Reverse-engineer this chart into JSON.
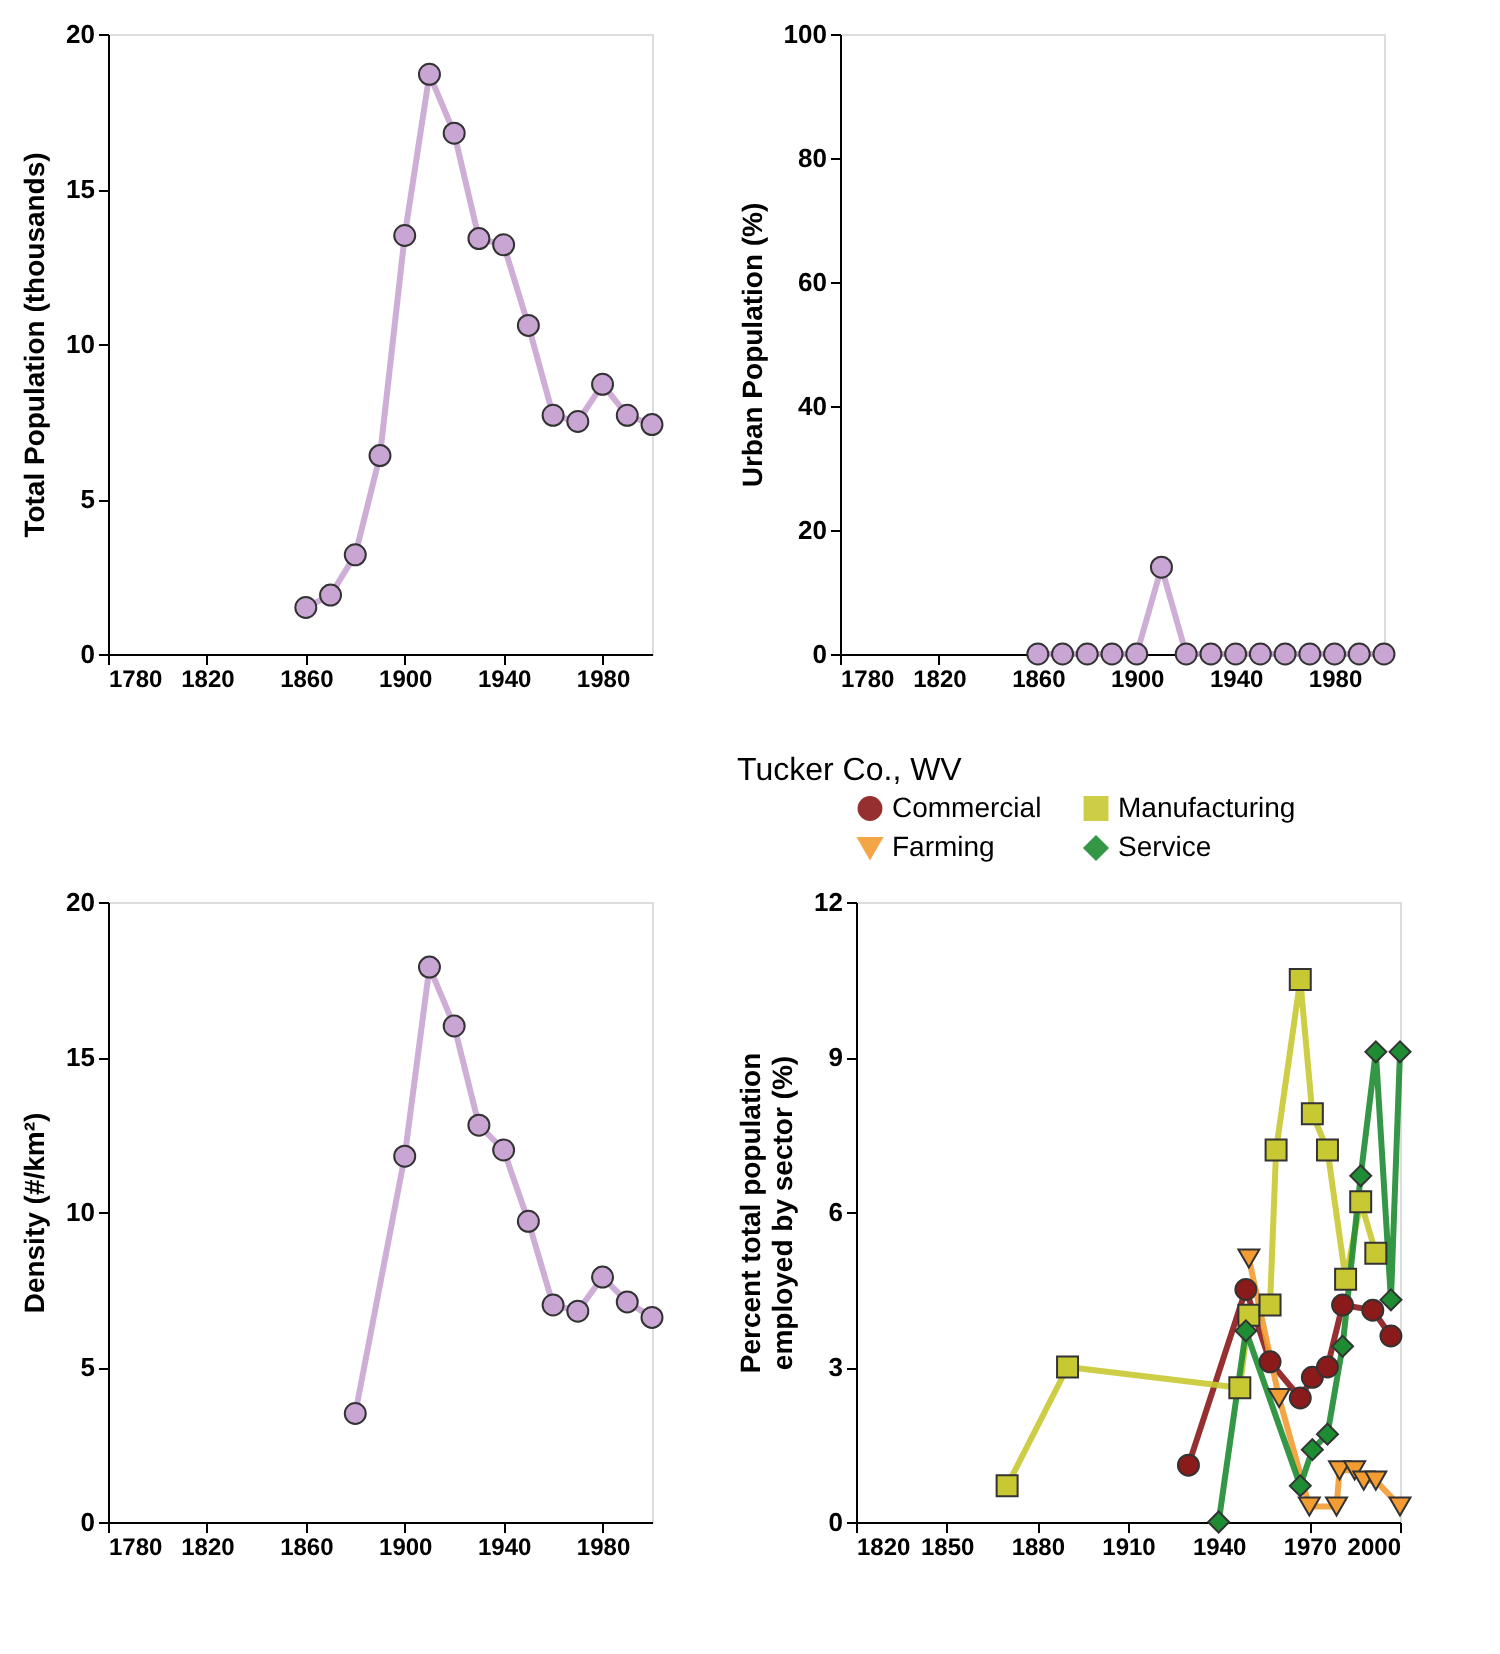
{
  "chart_data": [
    {
      "type": "line",
      "ylabel": "Total Population (thousands)",
      "x": [
        1860,
        1870,
        1880,
        1890,
        1900,
        1910,
        1920,
        1930,
        1940,
        1950,
        1960,
        1970,
        1980,
        1990,
        2000
      ],
      "xlim": [
        1780,
        2000
      ],
      "xticks": [
        1780,
        1820,
        1860,
        1900,
        1940,
        1980
      ],
      "ylim": [
        0,
        20
      ],
      "yticks": [
        0,
        5,
        10,
        15,
        20
      ],
      "grid": false,
      "legend": false,
      "marker": "circle",
      "series": [
        {
          "color": "#c9a5d3",
          "values": [
            1.5,
            1.9,
            3.2,
            6.4,
            13.5,
            18.7,
            16.8,
            13.4,
            13.2,
            10.6,
            7.7,
            7.5,
            8.7,
            7.7,
            7.4
          ]
        }
      ]
    },
    {
      "type": "line",
      "ylabel": "Urban Population (%)",
      "x": [
        1860,
        1870,
        1880,
        1890,
        1900,
        1910,
        1920,
        1930,
        1940,
        1950,
        1960,
        1970,
        1980,
        1990,
        2000
      ],
      "xlim": [
        1780,
        2000
      ],
      "xticks": [
        1780,
        1820,
        1860,
        1900,
        1940,
        1980
      ],
      "ylim": [
        0,
        100
      ],
      "yticks": [
        0,
        20,
        40,
        60,
        80,
        100
      ],
      "grid": false,
      "legend": false,
      "marker": "circle",
      "series": [
        {
          "color": "#c9a5d3",
          "values": [
            0,
            0,
            0,
            0,
            0,
            14,
            0,
            0,
            0,
            0,
            0,
            0,
            0,
            0,
            0
          ]
        }
      ]
    },
    {
      "type": "line",
      "ylabel": "Density (#/km²)",
      "x": [
        1880,
        1900,
        1910,
        1920,
        1930,
        1940,
        1950,
        1960,
        1970,
        1980,
        1990,
        2000
      ],
      "xlim": [
        1780,
        2000
      ],
      "xticks": [
        1780,
        1820,
        1860,
        1900,
        1940,
        1980
      ],
      "ylim": [
        0,
        20
      ],
      "yticks": [
        0,
        5,
        10,
        15,
        20
      ],
      "grid": false,
      "legend": false,
      "marker": "circle",
      "series": [
        {
          "color": "#c9a5d3",
          "values": [
            3.5,
            11.8,
            17.9,
            16.0,
            12.8,
            12.0,
            9.7,
            7.0,
            6.8,
            7.9,
            7.1,
            6.6
          ]
        }
      ]
    },
    {
      "type": "line",
      "title": "Tucker Co., WV",
      "ylabel": "Percent total population\nemployed by sector (%)",
      "xlim": [
        1820,
        2000
      ],
      "xticks": [
        1820,
        1850,
        1880,
        1910,
        1940,
        1970,
        2000
      ],
      "ylim": [
        0,
        12
      ],
      "yticks": [
        0,
        3,
        6,
        9,
        12
      ],
      "grid": false,
      "legend": "top",
      "series": [
        {
          "name": "Commercial",
          "color": "#8b1a1a",
          "marker": "circle",
          "x": [
            1930,
            1949,
            1957,
            1967,
            1971,
            1976,
            1981,
            1991,
            1997
          ],
          "values": [
            1.1,
            4.5,
            3.1,
            2.4,
            2.8,
            3.0,
            4.2,
            4.1,
            3.6
          ]
        },
        {
          "name": "Manufacturing",
          "color": "#c8c832",
          "marker": "square",
          "x": [
            1870,
            1890,
            1947,
            1950,
            1957,
            1959,
            1967,
            1971,
            1976,
            1982,
            1987,
            1992
          ],
          "values": [
            0.7,
            3.0,
            2.6,
            4.0,
            4.2,
            7.2,
            10.5,
            7.9,
            7.2,
            4.7,
            6.2,
            5.2
          ]
        },
        {
          "name": "Farming",
          "color": "#f39c32",
          "marker": "triangle",
          "x": [
            1950,
            1960,
            1970,
            1979,
            1980,
            1985,
            1988,
            1992,
            2000
          ],
          "values": [
            5.1,
            2.4,
            0.3,
            0.3,
            1.0,
            1.0,
            0.8,
            0.8,
            0.3
          ]
        },
        {
          "name": "Service",
          "color": "#1e8c32",
          "marker": "diamond",
          "x": [
            1940,
            1949,
            1967,
            1971,
            1976,
            1981,
            1987,
            1992,
            1997,
            2000
          ],
          "values": [
            0.0,
            3.7,
            0.7,
            1.4,
            1.7,
            3.4,
            6.7,
            9.1,
            4.3,
            9.1
          ]
        }
      ]
    }
  ]
}
